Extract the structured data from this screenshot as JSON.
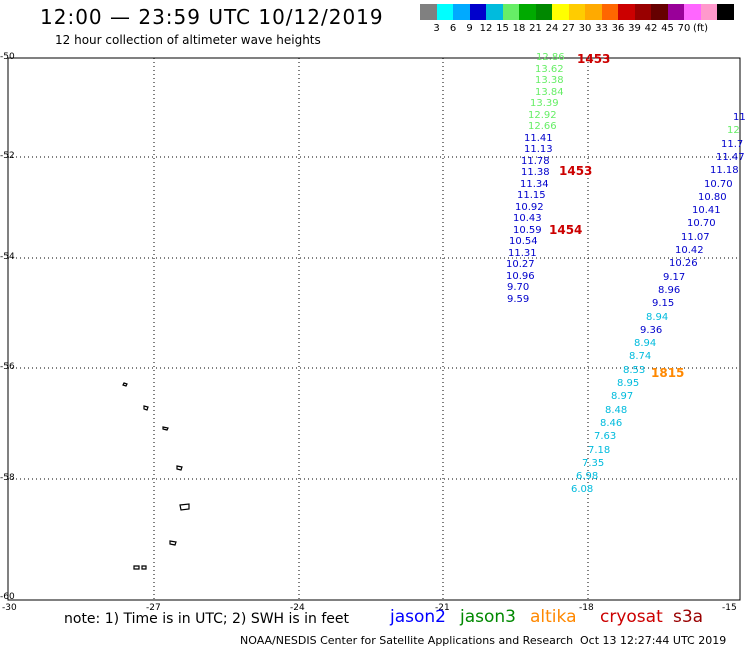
{
  "title": "12:00 — 23:59 UTC 10/12/2019",
  "subtitle": "12 hour collection of altimeter wave heights",
  "scale": {
    "colors": [
      "#808080",
      "#00ffff",
      "#00aaff",
      "#0000cc",
      "#00bbdd",
      "#66ee66",
      "#00aa00",
      "#008800",
      "#ffff00",
      "#ffcc00",
      "#ffaa00",
      "#ff6600",
      "#cc0000",
      "#990000",
      "#660000",
      "#990099",
      "#ff66ff",
      "#ff99cc",
      "#000000"
    ],
    "labels": [
      "3",
      "6",
      "9",
      "12",
      "15",
      "18",
      "21",
      "24",
      "27",
      "30",
      "33",
      "36",
      "39",
      "42",
      "45",
      "70",
      "(ft)"
    ]
  },
  "axes": {
    "lat_labels": [
      "-50",
      "-52",
      "-54",
      "-56",
      "-58",
      "-60"
    ],
    "lon_labels": [
      "-30",
      "-27",
      "-24",
      "-21",
      "-18",
      "-15"
    ]
  },
  "passes": {
    "pass1": {
      "values": [
        "12.86",
        "13.62",
        "13.38",
        "13.84",
        "13.39",
        "12.92",
        "12.66",
        "11.41",
        "11.13",
        "11.78",
        "11.38",
        "11.34",
        "11.15",
        "10.92",
        "10.43",
        "10.59",
        "10.54",
        "11.31",
        "10.27",
        "10.96",
        "9.70",
        "9.59"
      ],
      "colors": [
        "#66ee66",
        "#66ee66",
        "#66ee66",
        "#66ee66",
        "#66ee66",
        "#66ee66",
        "#66ee66",
        "#0000cc",
        "#0000cc",
        "#0000cc",
        "#0000cc",
        "#0000cc",
        "#0000cc",
        "#0000cc",
        "#0000cc",
        "#0000cc",
        "#0000cc",
        "#0000cc",
        "#0000cc",
        "#0000cc",
        "#0000cc",
        "#0000cc"
      ]
    },
    "pass2": {
      "values": [
        "11",
        "12",
        "11.7",
        "11.47",
        "11.18",
        "10.70",
        "10.80",
        "10.41",
        "10.70",
        "11.07",
        "10.42",
        "10.26",
        "9.17",
        "8.96",
        "9.15",
        "8.94",
        "9.36",
        "8.94",
        "8.74",
        "8.53",
        "8.95",
        "8.97",
        "8.48",
        "8.46",
        "7.63",
        "7.18",
        "7.35",
        "6.98",
        "6.08"
      ],
      "colors": [
        "#0000cc",
        "#66ee66",
        "#0000cc",
        "#0000cc",
        "#0000cc",
        "#0000cc",
        "#0000cc",
        "#0000cc",
        "#0000cc",
        "#0000cc",
        "#0000cc",
        "#0000cc",
        "#0000cc",
        "#0000cc",
        "#0000cc",
        "#00bbdd",
        "#0000cc",
        "#00bbdd",
        "#00bbdd",
        "#00bbdd",
        "#00bbdd",
        "#00bbdd",
        "#00bbdd",
        "#00bbdd",
        "#00bbdd",
        "#00bbdd",
        "#00bbdd",
        "#00bbdd",
        "#00bbdd"
      ]
    },
    "time_labels": [
      {
        "text": "1453",
        "color": "#cc0000"
      },
      {
        "text": "1453",
        "color": "#cc0000"
      },
      {
        "text": "1454",
        "color": "#cc0000"
      },
      {
        "text": "1815",
        "color": "#ff8800"
      }
    ]
  },
  "note": "note: 1) Time is in UTC; 2) SWH is in feet",
  "missions": [
    {
      "name": "jason2",
      "color": "#0000ff"
    },
    {
      "name": "jason3",
      "color": "#008800"
    },
    {
      "name": "altika",
      "color": "#ff8800"
    },
    {
      "name": "cryosat",
      "color": "#cc0000"
    },
    {
      "name": "s3a",
      "color": "#990000"
    }
  ],
  "credit": "NOAA/NESDIS Center for Satellite Applications and Research",
  "timestamp": "Oct 13 12:27:44 UTC 2019"
}
